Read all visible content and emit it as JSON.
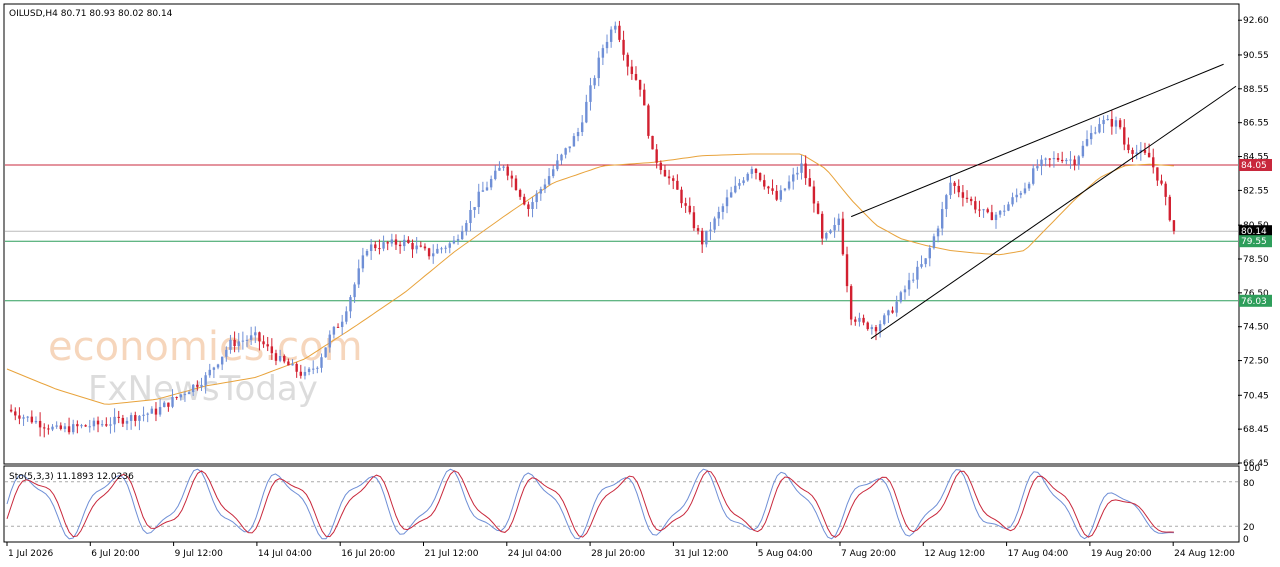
{
  "header": {
    "symbol_text": "OILUSD,H4  80.71 80.93 80.02 80.14",
    "osc_text": "Sto(5,3,3) 11.1893 12.0236"
  },
  "watermark": {
    "line1": "economies.com",
    "line2": "FxNewsToday"
  },
  "colors": {
    "bull": "#6f8fd6",
    "bear": "#d22030",
    "ma": "#e8a33c",
    "resistance": "#c8283c",
    "support": "#2e9e5b",
    "current": "#bbbbbb",
    "stoch_main": "#6f8fd6",
    "stoch_signal": "#c8283c"
  },
  "chart_data": {
    "type": "candlestick",
    "symbol": "OILUSD",
    "timeframe": "H4",
    "ylim": [
      66.45,
      93.5
    ],
    "y_ticks": [
      "92.60",
      "90.55",
      "88.55",
      "86.55",
      "84.55",
      "82.55",
      "80.50",
      "78.50",
      "76.50",
      "74.50",
      "72.50",
      "70.45",
      "68.45",
      "66.45"
    ],
    "x_ticks": [
      "1 Jul 2026",
      "6 Jul 20:00",
      "9 Jul 12:00",
      "14 Jul 04:00",
      "16 Jul 20:00",
      "21 Jul 12:00",
      "24 Jul 04:00",
      "28 Jul 20:00",
      "31 Jul 12:00",
      "5 Aug 04:00",
      "7 Aug 20:00",
      "12 Aug 12:00",
      "17 Aug 04:00",
      "19 Aug 20:00",
      "24 Aug 12:00"
    ],
    "close_path": [
      [
        0,
        69.6
      ],
      [
        2,
        68.4
      ],
      [
        4,
        68.8
      ],
      [
        6,
        69.5
      ],
      [
        7,
        70.5
      ],
      [
        8,
        71.5
      ],
      [
        9,
        73.5
      ],
      [
        10,
        73.9
      ],
      [
        11,
        72.5
      ],
      [
        12,
        71.6
      ],
      [
        12.5,
        72.3
      ],
      [
        13,
        73.9
      ],
      [
        13.5,
        75.0
      ],
      [
        14,
        77.0
      ],
      [
        14.5,
        79.2
      ],
      [
        15,
        79.3
      ],
      [
        16,
        79.5
      ],
      [
        17,
        78.8
      ],
      [
        18,
        79.5
      ],
      [
        19,
        82.2
      ],
      [
        20,
        84.1
      ],
      [
        21,
        81.5
      ],
      [
        22,
        83.8
      ],
      [
        23,
        86.0
      ],
      [
        23.5,
        88.5
      ],
      [
        24,
        91.0
      ],
      [
        24.5,
        92.5
      ],
      [
        25,
        90.0
      ],
      [
        25.5,
        88.7
      ],
      [
        26,
        84.7
      ],
      [
        27,
        82.5
      ],
      [
        28,
        79.5
      ],
      [
        29,
        82.0
      ],
      [
        30,
        84.0
      ],
      [
        31,
        82.0
      ],
      [
        32,
        84.0
      ],
      [
        32.6,
        81.6
      ],
      [
        32.8,
        79.5
      ],
      [
        33,
        79.8
      ],
      [
        33.3,
        80.2
      ],
      [
        33.5,
        80.9
      ],
      [
        34,
        75.2
      ],
      [
        34.5,
        74.6
      ],
      [
        35,
        74.5
      ],
      [
        35.5,
        75.2
      ],
      [
        36,
        76.3
      ],
      [
        36.5,
        77.5
      ],
      [
        37,
        78.4
      ],
      [
        37.5,
        80.5
      ],
      [
        38,
        83.0
      ],
      [
        38.6,
        82.2
      ],
      [
        39,
        81.6
      ],
      [
        39.5,
        81.0
      ],
      [
        40,
        81.2
      ],
      [
        40.5,
        82.0
      ],
      [
        41,
        82.8
      ],
      [
        41.5,
        84.0
      ],
      [
        42,
        84.3
      ],
      [
        42.5,
        84.5
      ],
      [
        43,
        84.3
      ],
      [
        43.5,
        85.5
      ],
      [
        44,
        86.6
      ],
      [
        44.8,
        86.5
      ],
      [
        45,
        85.3
      ],
      [
        45.5,
        84.8
      ],
      [
        46,
        84.5
      ],
      [
        46.5,
        82.8
      ],
      [
        47,
        80.14
      ]
    ],
    "moving_average": [
      [
        0,
        72.0
      ],
      [
        2,
        70.8
      ],
      [
        4,
        69.9
      ],
      [
        6,
        70.2
      ],
      [
        8,
        71.0
      ],
      [
        10,
        71.5
      ],
      [
        12,
        72.6
      ],
      [
        14,
        74.5
      ],
      [
        16,
        76.5
      ],
      [
        18,
        78.9
      ],
      [
        20,
        81.0
      ],
      [
        22,
        83.0
      ],
      [
        24,
        84.0
      ],
      [
        26,
        84.2
      ],
      [
        28,
        84.6
      ],
      [
        30,
        84.7
      ],
      [
        32,
        84.7
      ],
      [
        33,
        83.8
      ],
      [
        34,
        82.0
      ],
      [
        35,
        80.5
      ],
      [
        36,
        79.7
      ],
      [
        37,
        79.3
      ],
      [
        38,
        79.0
      ],
      [
        39,
        78.85
      ],
      [
        40,
        78.75
      ],
      [
        41,
        79.0
      ],
      [
        42,
        80.5
      ],
      [
        43,
        82.0
      ],
      [
        44,
        83.3
      ],
      [
        45,
        84.0
      ],
      [
        46,
        84.1
      ],
      [
        47,
        84.0
      ]
    ],
    "levels": [
      {
        "label": "84.05",
        "value": 84.05,
        "role": "resistance"
      },
      {
        "label": "80.14",
        "value": 80.14,
        "role": "current"
      },
      {
        "label": "79.55",
        "value": 79.55,
        "role": "support"
      },
      {
        "label": "76.03",
        "value": 76.03,
        "role": "support"
      }
    ],
    "trendlines": [
      {
        "name": "wedge-upper",
        "from": [
          34,
          81.0
        ],
        "to": [
          49,
          90.0
        ]
      },
      {
        "name": "wedge-lower",
        "from": [
          34.8,
          73.8
        ],
        "to": [
          49.5,
          88.7
        ]
      }
    ],
    "stochastic": {
      "params": "5,3,3",
      "main": 11.1893,
      "signal": 12.0236,
      "y_ticks": [
        "100",
        "80",
        "20",
        "0"
      ],
      "levels": [
        80,
        20
      ]
    }
  }
}
